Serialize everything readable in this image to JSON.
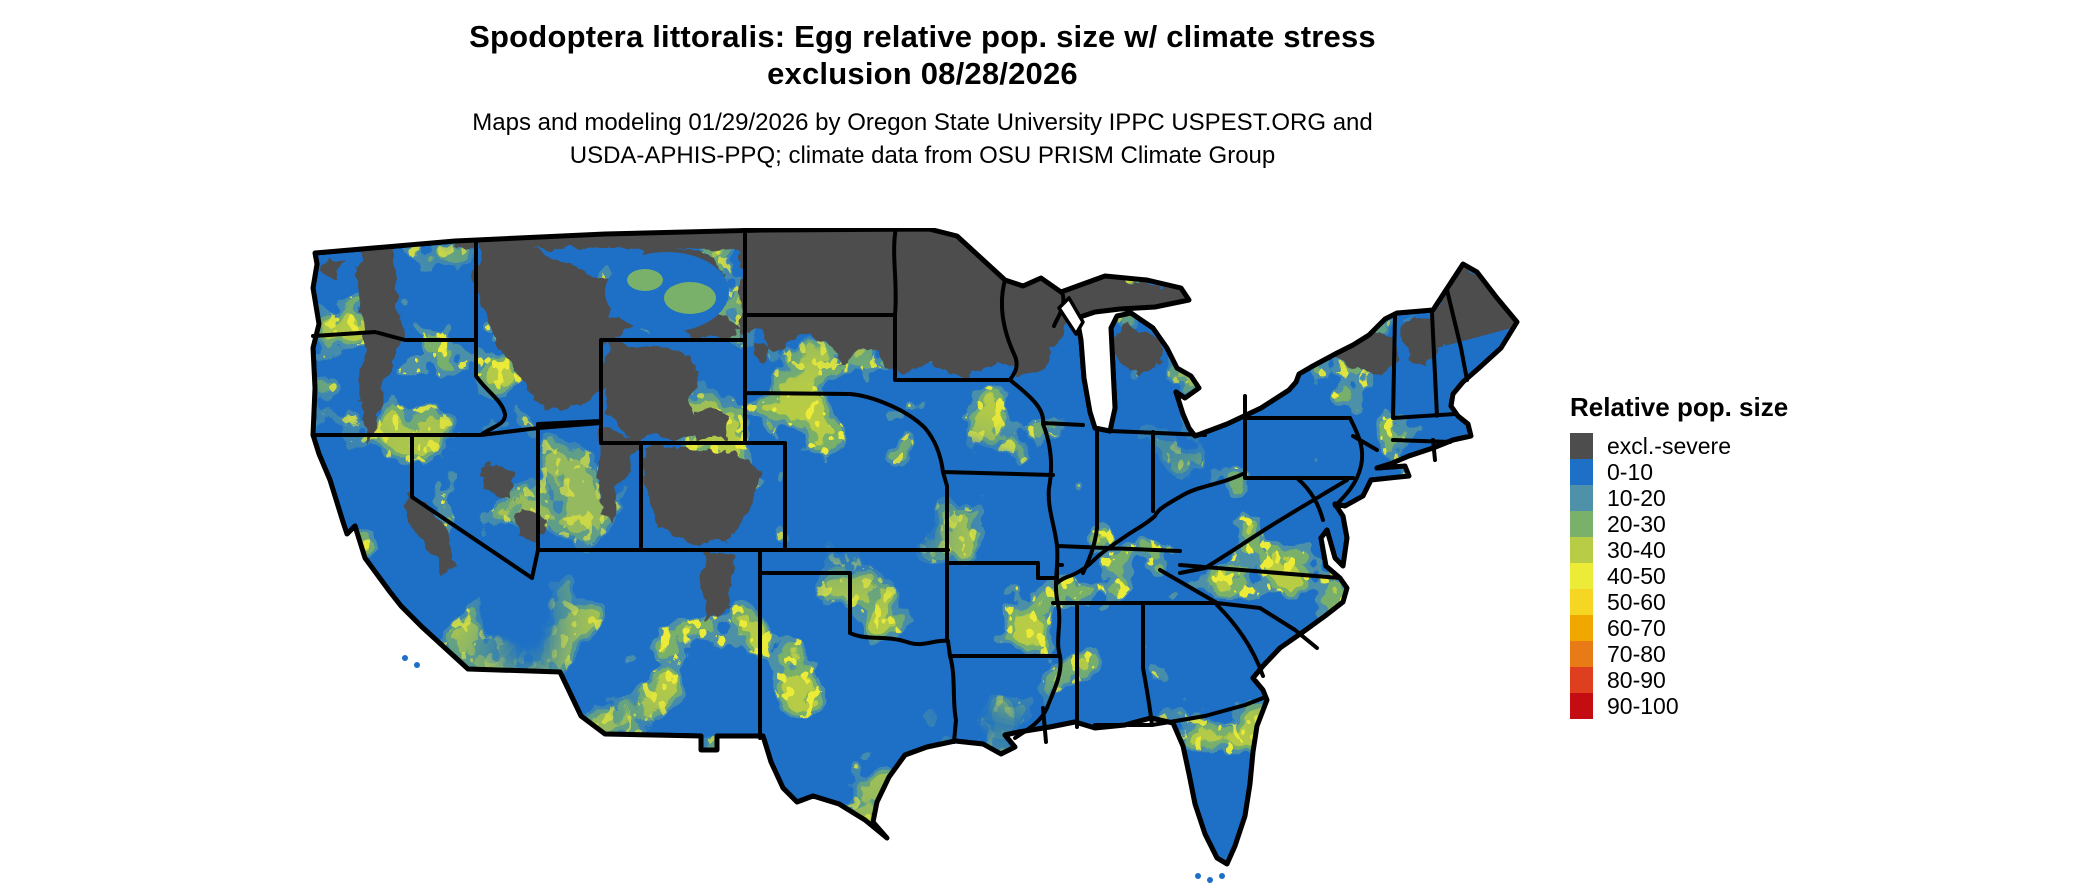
{
  "header": {
    "title_line1": "Spodoptera littoralis: Egg relative pop. size w/ climate stress",
    "title_line2": "exclusion 08/28/2026",
    "subtitle_line1": "Maps and modeling 01/29/2026 by Oregon State University IPPC USPEST.ORG and",
    "subtitle_line2": "USDA-APHIS-PPQ; climate data from OSU PRISM Climate Group"
  },
  "legend": {
    "title": "Relative pop. size",
    "items": [
      {
        "label": "excl.-severe",
        "color": "#4d4d4d"
      },
      {
        "label": "0-10",
        "color": "#1d70c6"
      },
      {
        "label": "10-20",
        "color": "#4e91a8"
      },
      {
        "label": "20-30",
        "color": "#79b06a"
      },
      {
        "label": "30-40",
        "color": "#b8cc45"
      },
      {
        "label": "40-50",
        "color": "#eceb38"
      },
      {
        "label": "50-60",
        "color": "#f5d622"
      },
      {
        "label": "60-70",
        "color": "#f0a800"
      },
      {
        "label": "70-80",
        "color": "#e87b16"
      },
      {
        "label": "80-90",
        "color": "#dd3f1f"
      },
      {
        "label": "90-100",
        "color": "#c40d12"
      }
    ]
  },
  "map": {
    "region_label": "Continental United States",
    "base_category": "0-10",
    "palette": {
      "blue": "#1d70c6",
      "teal": "#4e91a8",
      "green": "#79b06a",
      "yellow_green": "#b8cc45",
      "yellow": "#eceb38",
      "gray": "#4d4d4d",
      "border": "#000000",
      "background": "#ffffff"
    }
  }
}
